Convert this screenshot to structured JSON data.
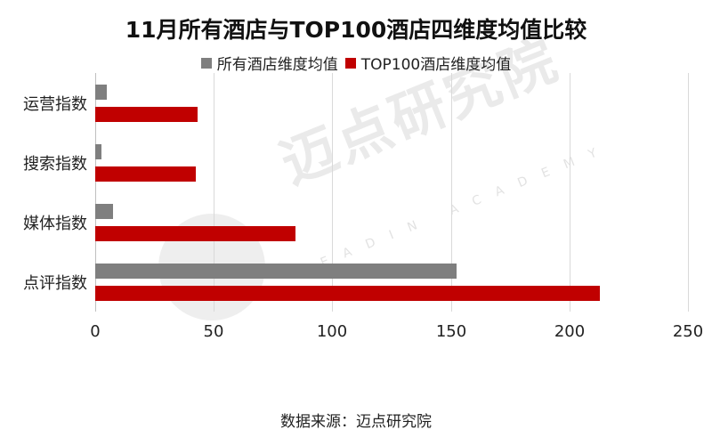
{
  "chart_data": {
    "type": "bar",
    "orientation": "horizontal",
    "title": "11月所有酒店与TOP100酒店四维度均值比较",
    "categories": [
      "运营指数",
      "搜索指数",
      "媒体指数",
      "点评指数"
    ],
    "series": [
      {
        "name": "所有酒店维度均值",
        "color": "#7f7f7f",
        "values": [
          5,
          2.6,
          7.5,
          152.5
        ]
      },
      {
        "name": "TOP100酒店维度均值",
        "color": "#c00000",
        "values": [
          43,
          42.4,
          84.5,
          212.8
        ]
      }
    ],
    "xlabel": "",
    "ylabel": "",
    "xlim": [
      0,
      250
    ],
    "xticks": [
      "0",
      "50",
      "100",
      "150",
      "200",
      "250"
    ],
    "grid": true,
    "legend_position": "top"
  },
  "source": "数据来源：迈点研究院",
  "watermark": {
    "cn": "迈点研究院",
    "en": "MEADIN ACADEMY"
  }
}
